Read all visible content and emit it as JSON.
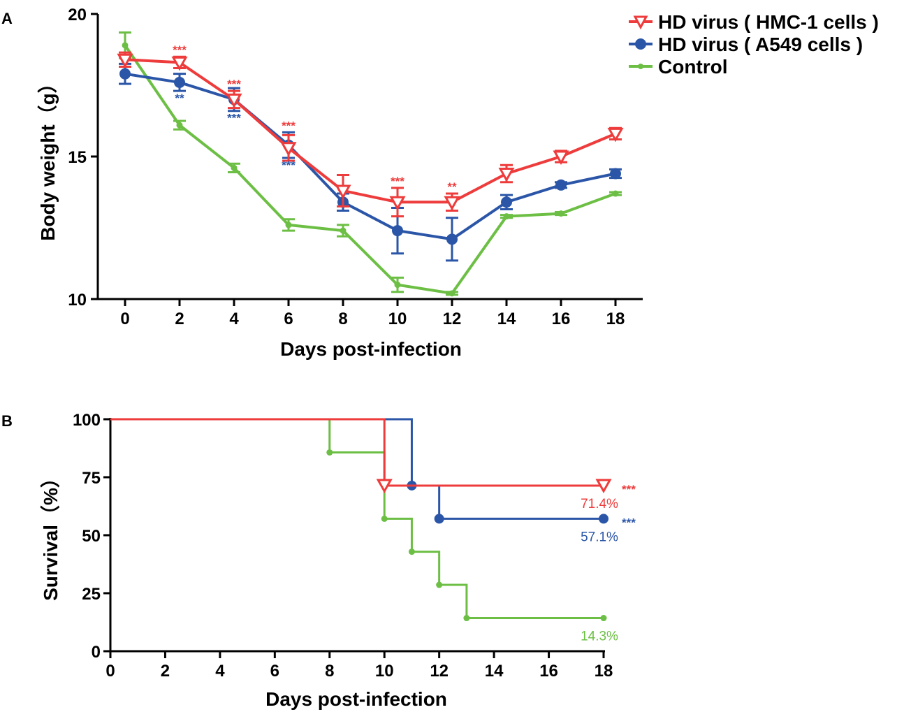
{
  "colors": {
    "hmc": "#ee3b3b",
    "a549": "#2b56a8",
    "control": "#6cbf44"
  },
  "legend": [
    {
      "label": "HD virus ( HMC-1 cells )",
      "key": "hmc",
      "marker": "triangle-down-open"
    },
    {
      "label": "HD virus ( A549 cells )",
      "key": "a549",
      "marker": "circle"
    },
    {
      "label": "Control",
      "key": "control",
      "marker": "dot"
    }
  ],
  "chart_data": [
    {
      "panel_label": "A",
      "type": "line",
      "xlabel": "Days post-infection",
      "ylabel": "Body weight（g）",
      "xlim": [
        -1,
        19
      ],
      "ylim": [
        10,
        20
      ],
      "xticks": [
        "0",
        "2",
        "4",
        "6",
        "8",
        "10",
        "12",
        "14",
        "16",
        "18"
      ],
      "yticks": [
        "10",
        "15",
        "20"
      ],
      "x": [
        0,
        2,
        4,
        6,
        8,
        10,
        12,
        14,
        16,
        18
      ],
      "series": [
        {
          "name": "HD virus ( HMC-1 cells )",
          "key": "hmc",
          "values": [
            18.4,
            18.3,
            17.0,
            15.3,
            13.8,
            13.4,
            13.4,
            14.4,
            15.0,
            15.8
          ],
          "errors": [
            0.25,
            0.2,
            0.3,
            0.45,
            0.55,
            0.5,
            0.3,
            0.3,
            0.2,
            0.2
          ]
        },
        {
          "name": "HD virus ( A549 cells )",
          "key": "a549",
          "values": [
            17.9,
            17.6,
            17.0,
            15.4,
            13.4,
            12.4,
            12.1,
            13.4,
            14.0,
            14.4
          ],
          "errors": [
            0.35,
            0.3,
            0.4,
            0.45,
            0.3,
            0.8,
            0.75,
            0.25,
            0.1,
            0.15
          ]
        },
        {
          "name": "Control",
          "key": "control",
          "values": [
            18.9,
            16.1,
            14.6,
            12.6,
            12.4,
            10.5,
            10.2,
            12.9,
            13.0,
            13.7
          ],
          "errors": [
            0.45,
            0.15,
            0.15,
            0.2,
            0.2,
            0.25,
            0.05,
            0.05,
            0.05,
            0.05
          ]
        }
      ],
      "annotations": [
        {
          "x": 2,
          "text": "***",
          "key": "hmc",
          "pos": "above",
          "value": 18.5
        },
        {
          "x": 4,
          "text": "***",
          "key": "hmc",
          "pos": "above",
          "value": 17.3
        },
        {
          "x": 6,
          "text": "***",
          "key": "hmc",
          "pos": "above",
          "value": 15.85
        },
        {
          "x": 10,
          "text": "***",
          "key": "hmc",
          "pos": "above",
          "value": 13.9
        },
        {
          "x": 12,
          "text": "**",
          "key": "hmc",
          "pos": "above",
          "value": 13.7
        },
        {
          "x": 2,
          "text": "**",
          "key": "a549",
          "pos": "below",
          "value": 17.3
        },
        {
          "x": 4,
          "text": "***",
          "key": "a549",
          "pos": "below",
          "value": 16.6
        },
        {
          "x": 6,
          "text": "***",
          "key": "a549",
          "pos": "below",
          "value": 14.95
        }
      ]
    },
    {
      "panel_label": "B",
      "type": "step",
      "xlabel": "Days post-infection",
      "ylabel": "Survival（%）",
      "xlim": [
        0,
        18
      ],
      "ylim": [
        0,
        100
      ],
      "xticks": [
        "0",
        "2",
        "4",
        "6",
        "8",
        "10",
        "12",
        "14",
        "16",
        "18"
      ],
      "yticks": [
        "0",
        "25",
        "50",
        "75",
        "100"
      ],
      "series": [
        {
          "name": "HD virus ( HMC-1 cells )",
          "key": "hmc",
          "steps": [
            [
              0,
              100
            ],
            [
              10,
              71.4
            ],
            [
              18,
              71.4
            ]
          ],
          "markers": [
            [
              10,
              71.4
            ],
            [
              18,
              71.4
            ]
          ],
          "final_label": "71.4%",
          "sig": "***"
        },
        {
          "name": "HD virus ( A549 cells )",
          "key": "a549",
          "steps": [
            [
              0,
              100
            ],
            [
              11,
              71.4
            ],
            [
              12,
              57.1
            ],
            [
              18,
              57.1
            ]
          ],
          "markers": [
            [
              11,
              71.4
            ],
            [
              12,
              57.1
            ],
            [
              18,
              57.1
            ]
          ],
          "final_label": "57.1%",
          "sig": "***"
        },
        {
          "name": "Control",
          "key": "control",
          "steps": [
            [
              0,
              100
            ],
            [
              8,
              85.7
            ],
            [
              10,
              57.1
            ],
            [
              11,
              42.9
            ],
            [
              12,
              28.6
            ],
            [
              13,
              14.3
            ],
            [
              18,
              14.3
            ]
          ],
          "markers": [
            [
              8,
              85.7
            ],
            [
              10,
              57.1
            ],
            [
              11,
              42.9
            ],
            [
              12,
              28.6
            ],
            [
              13,
              14.3
            ],
            [
              18,
              14.3
            ]
          ],
          "final_label": "14.3%",
          "sig": ""
        }
      ]
    }
  ]
}
